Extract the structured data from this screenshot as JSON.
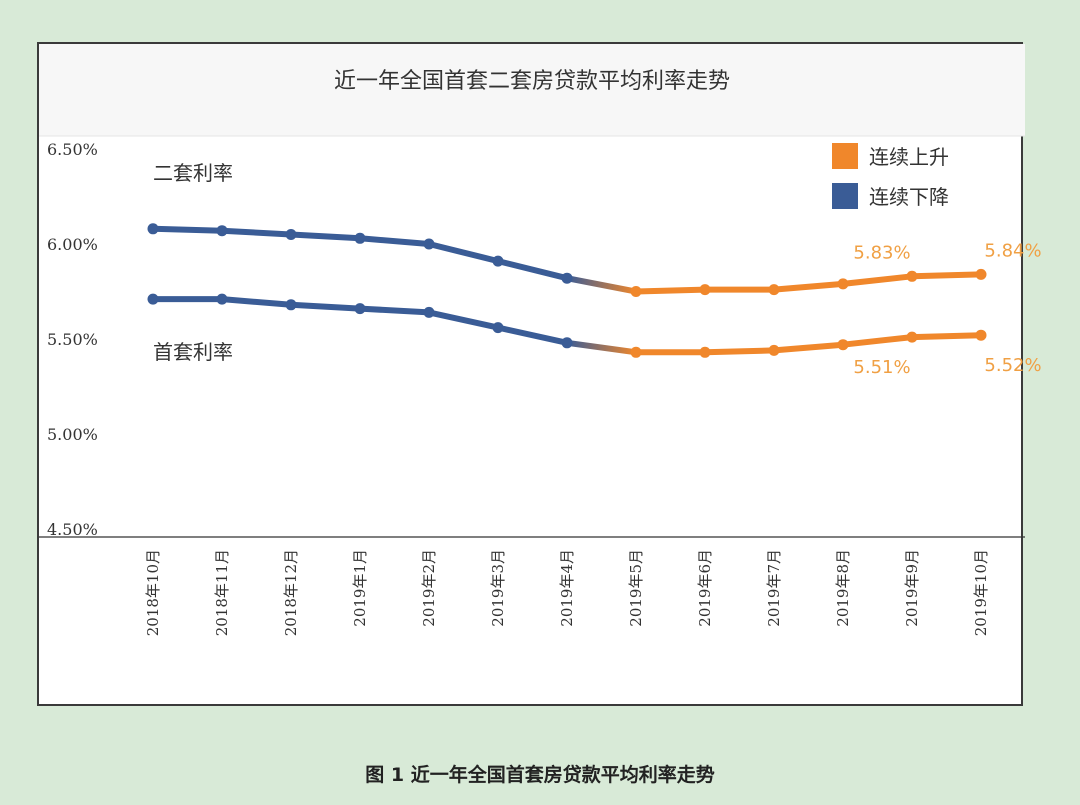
{
  "caption": "图 1 近一年全国首套房贷款平均利率走势",
  "chart_data": {
    "type": "line",
    "title": "近一年全国首套二套房贷款平均利率走势",
    "categories": [
      "2018年10月",
      "2018年11月",
      "2018年12月",
      "2019年1月",
      "2019年2月",
      "2019年3月",
      "2019年4月",
      "2019年5月",
      "2019年6月",
      "2019年7月",
      "2019年8月",
      "2019年9月",
      "2019年10月"
    ],
    "y_ticks": [
      "6.50%",
      "6.00%",
      "5.50%",
      "5.00%",
      "4.50%"
    ],
    "ylim": [
      4.5,
      6.5
    ],
    "grid": false,
    "series": [
      {
        "name": "二套利率",
        "values": [
          6.08,
          6.07,
          6.05,
          6.03,
          6.0,
          5.91,
          5.82,
          5.75,
          5.76,
          5.76,
          5.79,
          5.83,
          5.84
        ]
      },
      {
        "name": "首套利率",
        "values": [
          5.71,
          5.71,
          5.68,
          5.66,
          5.64,
          5.56,
          5.48,
          5.43,
          5.43,
          5.44,
          5.47,
          5.51,
          5.52
        ]
      }
    ],
    "legend": {
      "placement": "top-right",
      "entries": [
        {
          "label": "连续上升",
          "color": "#f0872b"
        },
        {
          "label": "连续下降",
          "color": "#3a5c96"
        }
      ]
    },
    "colors": {
      "rise": "#f0872b",
      "fall": "#3a5c96"
    },
    "data_labels": [
      {
        "text": "5.83%",
        "series": 0,
        "index": 11
      },
      {
        "text": "5.84%",
        "series": 0,
        "index": 12
      },
      {
        "text": "5.51%",
        "series": 1,
        "index": 11
      },
      {
        "text": "5.52%",
        "series": 1,
        "index": 12
      }
    ]
  }
}
